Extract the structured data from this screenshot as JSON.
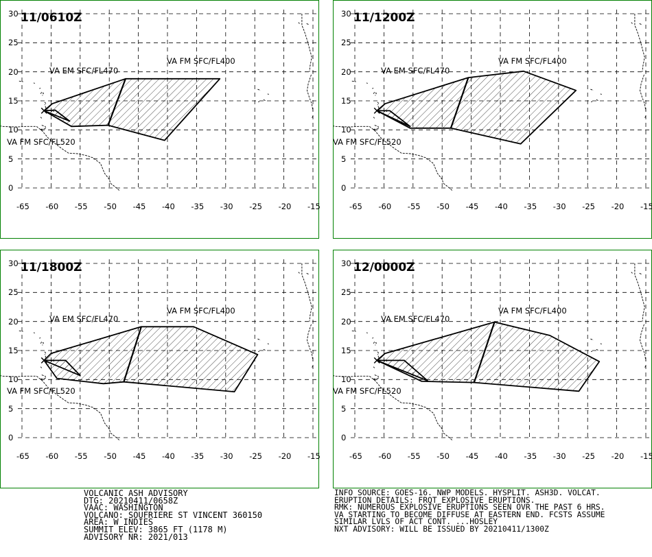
{
  "panels": [
    {
      "time": "11/0610Z",
      "labels": {
        "em": "VA EM SFC/FL470",
        "top": "VA FM SFC/FL400",
        "low": "VA FM SFC/FL520"
      },
      "polygons": [
        [
          [
            -61.2,
            13.3
          ],
          [
            -59.8,
            14.5
          ],
          [
            -47.2,
            18.8
          ],
          [
            -31.0,
            18.8
          ],
          [
            -40.5,
            8.2
          ],
          [
            -50.2,
            10.8
          ],
          [
            -56.5,
            10.6
          ],
          [
            -61.2,
            13.3
          ]
        ],
        [
          [
            -61.2,
            13.3
          ],
          [
            -59.3,
            13.4
          ],
          [
            -56.8,
            11.5
          ],
          [
            -61.2,
            13.3
          ]
        ]
      ],
      "divider": [
        [
          -47.2,
          18.8
        ],
        [
          -50.2,
          10.8
        ]
      ]
    },
    {
      "time": "11/1200Z",
      "labels": {
        "em": "VA EM SFC/FL470",
        "top": "VA FM SFC/FL400",
        "low": "VA FM SFC/FL520"
      },
      "polygons": [
        [
          [
            -61.2,
            13.3
          ],
          [
            -59.8,
            14.5
          ],
          [
            -45.5,
            19.0
          ],
          [
            -36.0,
            20.1
          ],
          [
            -27.0,
            16.8
          ],
          [
            -36.5,
            7.6
          ],
          [
            -48.5,
            10.3
          ],
          [
            -55.5,
            10.3
          ],
          [
            -61.2,
            13.3
          ]
        ],
        [
          [
            -61.2,
            13.3
          ],
          [
            -59.0,
            13.3
          ],
          [
            -55.5,
            10.6
          ],
          [
            -61.2,
            13.3
          ]
        ]
      ],
      "divider": [
        [
          -45.5,
          19.0
        ],
        [
          -48.5,
          10.3
        ]
      ]
    },
    {
      "time": "11/1800Z",
      "labels": {
        "em": "VA EM SFC/FL470",
        "top": "VA FM SFC/FL400",
        "low": "VA FM SFC/FL520"
      },
      "polygons": [
        [
          [
            -61.2,
            13.3
          ],
          [
            -60.0,
            14.5
          ],
          [
            -44.5,
            19.1
          ],
          [
            -35.5,
            19.1
          ],
          [
            -24.5,
            14.3
          ],
          [
            -28.5,
            7.9
          ],
          [
            -47.5,
            9.6
          ],
          [
            -51.0,
            9.3
          ],
          [
            -59.0,
            10.2
          ],
          [
            -61.2,
            13.3
          ]
        ],
        [
          [
            -61.2,
            13.3
          ],
          [
            -57.5,
            13.3
          ],
          [
            -55.0,
            10.7
          ],
          [
            -61.2,
            13.3
          ]
        ]
      ],
      "divider": [
        [
          -44.5,
          19.1
        ],
        [
          -47.5,
          9.6
        ]
      ]
    },
    {
      "time": "12/0000Z",
      "labels": {
        "em": "VA EM SFC/FL470",
        "top": "VA FM SFC/FL400",
        "low": "VA FM SFC/FL520"
      },
      "polygons": [
        [
          [
            -61.2,
            13.3
          ],
          [
            -59.8,
            14.5
          ],
          [
            -41.0,
            19.9
          ],
          [
            -31.5,
            17.6
          ],
          [
            -23.0,
            13.1
          ],
          [
            -26.5,
            8.0
          ],
          [
            -44.5,
            9.5
          ],
          [
            -53.5,
            9.7
          ],
          [
            -61.2,
            13.3
          ]
        ],
        [
          [
            -61.2,
            13.3
          ],
          [
            -56.5,
            13.3
          ],
          [
            -52.5,
            9.8
          ],
          [
            -61.2,
            13.3
          ]
        ]
      ],
      "divider": [
        [
          -41.0,
          19.9
        ],
        [
          -44.5,
          9.5
        ]
      ]
    }
  ],
  "map": {
    "lon_ticks": [
      "-65",
      "-60",
      "-55",
      "-50",
      "-45",
      "-40",
      "-35",
      "-30",
      "-25",
      "-20",
      "-15"
    ],
    "lat_ticks": [
      "30",
      "25",
      "20",
      "15",
      "10",
      "5",
      "0"
    ],
    "lon_range": [
      -65,
      -15
    ],
    "lat_range": [
      0,
      30
    ],
    "colors": {
      "frame": "#008000",
      "grid": "#000000",
      "ash": "#000000"
    }
  },
  "advisory_left": [
    "VOLCANIC ASH ADVISORY",
    "DTG: 20210411/0658Z",
    "VAAC: WASHINGTON",
    "VOLCANO: SOUFRIERE ST VINCENT 360150",
    "AREA: W_INDIES",
    "SUMMIT ELEV: 3865 FT (1178 M)",
    "ADVISORY NR: 2021/013"
  ],
  "advisory_right": [
    "INFO SOURCE: GOES-16. NWP MODELS. HYSPLIT. ASH3D. VOLCAT.",
    "ERUPTION DETAILS: FRQT EXPLOSIVE ERUPTIONS.",
    "RMK: NUMEROUS EXPLOSIVE ERUPTIONS SEEN OVR THE PAST 6 HRS.",
    "VA STARTING TO BECOME DIFFUSE AT EASTERN END. FCSTS ASSUME",
    "SIMILAR LVLS OF ACT CONT. ...HOSLEY",
    "NXT ADVISORY: WILL BE ISSUED BY 20210411/1300Z"
  ]
}
